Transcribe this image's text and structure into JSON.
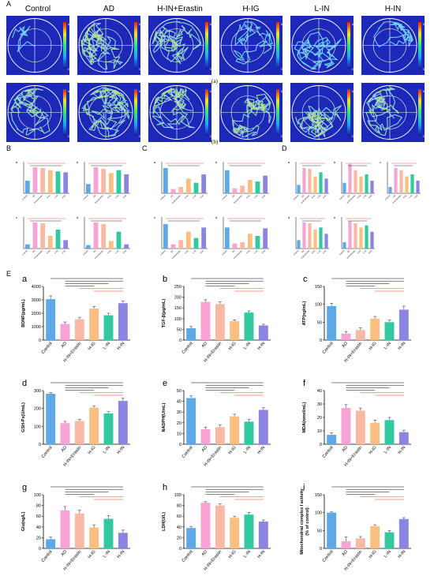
{
  "panel_letters": {
    "A": "A",
    "B": "B",
    "C": "C",
    "D": "D",
    "E": "E"
  },
  "groups": [
    "Control",
    "AD",
    "H-IN+Erastin",
    "H-IG",
    "L-IN",
    "H-IN"
  ],
  "group_colors": [
    "#5fa8e6",
    "#f7a3d6",
    "#f9b9a4",
    "#fbc081",
    "#32c8a0",
    "#8a85e0"
  ],
  "maze": {
    "row_a_label": "(a)",
    "row_b_label": "(b)",
    "colorbar_high": "Max",
    "colorbar_low": "0"
  },
  "b_panels": [
    {
      "id": "a",
      "values": [
        30,
        62,
        60,
        55,
        52,
        50
      ]
    },
    {
      "id": "b",
      "values": [
        22,
        62,
        58,
        48,
        55,
        45
      ]
    },
    {
      "id": "c",
      "values": [
        10,
        62,
        60,
        30,
        45,
        20
      ]
    },
    {
      "id": "d",
      "values": [
        8,
        62,
        58,
        18,
        40,
        10
      ]
    }
  ],
  "c_panels": [
    {
      "id": "a",
      "values": [
        60,
        10,
        15,
        35,
        25,
        45
      ]
    },
    {
      "id": "b",
      "values": [
        55,
        12,
        18,
        32,
        28,
        42
      ]
    },
    {
      "id": "c",
      "values": [
        58,
        10,
        20,
        40,
        25,
        50
      ]
    },
    {
      "id": "d",
      "values": [
        50,
        12,
        15,
        35,
        30,
        48
      ]
    }
  ],
  "d_panels": [
    {
      "id": "a",
      "values": [
        20,
        60,
        58,
        40,
        50,
        35
      ]
    },
    {
      "id": "b",
      "values": [
        25,
        70,
        55,
        40,
        45,
        30
      ]
    },
    {
      "id": "c",
      "values": [
        15,
        60,
        55,
        40,
        45,
        30
      ]
    },
    {
      "id": "d",
      "values": [
        20,
        62,
        60,
        45,
        50,
        35
      ]
    },
    {
      "id": "e",
      "values": [
        15,
        65,
        60,
        50,
        55,
        40
      ]
    }
  ],
  "chart_data": [
    {
      "panel": "a",
      "type": "bar",
      "ylabel": "BDNF(pg/mL)",
      "ylim": [
        0,
        4000
      ],
      "yticks": [
        0,
        1000,
        2000,
        3000,
        4000
      ],
      "categories": [
        "Control",
        "AD",
        "H-IN+Erastin",
        "H-IG",
        "L-IN",
        "H-IN"
      ],
      "values": [
        3050,
        1200,
        1550,
        2350,
        1850,
        2750
      ],
      "errors": [
        250,
        150,
        150,
        150,
        150,
        150
      ]
    },
    {
      "panel": "b",
      "type": "bar",
      "ylabel": "TGF-β(pg/mL)",
      "ylim": [
        0,
        250
      ],
      "yticks": [
        0,
        50,
        100,
        150,
        200,
        250
      ],
      "categories": [
        "Control",
        "AD",
        "H-IN+Erastin",
        "H-IG",
        "L-IN",
        "H-IN"
      ],
      "values": [
        55,
        178,
        168,
        88,
        128,
        68
      ],
      "errors": [
        8,
        10,
        10,
        6,
        8,
        6
      ]
    },
    {
      "panel": "c",
      "type": "bar",
      "ylabel": "ATP(ng/mL)",
      "ylim": [
        0,
        150
      ],
      "yticks": [
        0,
        50,
        100,
        150
      ],
      "categories": [
        "Control",
        "AD",
        "H-IN+Erastin",
        "H-IG",
        "L-IN",
        "H-IN"
      ],
      "values": [
        95,
        18,
        28,
        60,
        50,
        85
      ],
      "errors": [
        8,
        6,
        6,
        6,
        6,
        10
      ]
    },
    {
      "panel": "d",
      "type": "bar",
      "ylabel": "GSH-Px(U/mL)",
      "ylim": [
        0,
        300
      ],
      "yticks": [
        0,
        100,
        200,
        300
      ],
      "categories": [
        "Control",
        "AD",
        "H-IN+Erastin",
        "H-IG",
        "L-IN",
        "H-IN"
      ],
      "values": [
        282,
        118,
        130,
        205,
        172,
        242
      ],
      "errors": [
        8,
        10,
        8,
        8,
        10,
        15
      ]
    },
    {
      "panel": "e",
      "type": "bar",
      "ylabel": "NADPH(U/mL)",
      "ylim": [
        0,
        50
      ],
      "yticks": [
        0,
        10,
        20,
        30,
        40,
        50
      ],
      "categories": [
        "Control",
        "AD",
        "H-IN+Erastin",
        "H-IG",
        "L-IN",
        "H-IN"
      ],
      "values": [
        43,
        14,
        16,
        26,
        21,
        32
      ],
      "errors": [
        2,
        2,
        2,
        2,
        2,
        2
      ]
    },
    {
      "panel": "f",
      "type": "bar",
      "ylabel": "MDA(nmol/mL)",
      "ylim": [
        0,
        40
      ],
      "yticks": [
        0,
        10,
        20,
        30,
        40
      ],
      "categories": [
        "Control",
        "AD",
        "H-IN+Erastin",
        "H-IG",
        "L-IN",
        "H-IN"
      ],
      "values": [
        7,
        27,
        25,
        16,
        18,
        9
      ],
      "errors": [
        1.5,
        2.5,
        2,
        2,
        2,
        1.5
      ]
    },
    {
      "panel": "g",
      "type": "bar",
      "ylabel": "Glu(ng/L)",
      "ylim": [
        0,
        100
      ],
      "yticks": [
        0,
        20,
        40,
        60,
        80,
        100
      ],
      "categories": [
        "Control",
        "AD",
        "H-IN+Erastin",
        "H-IG",
        "L-IN",
        "H-IN"
      ],
      "values": [
        17,
        71,
        65,
        39,
        55,
        29
      ],
      "errors": [
        4,
        7,
        6,
        5,
        6,
        5
      ]
    },
    {
      "panel": "h",
      "type": "bar",
      "ylabel": "LDH(U/L)",
      "ylim": [
        0,
        100
      ],
      "yticks": [
        0,
        20,
        40,
        60,
        80,
        100
      ],
      "categories": [
        "Control",
        "AD",
        "H-IN+Erastin",
        "H-IG",
        "L-IN",
        "H-IN"
      ],
      "values": [
        38,
        85,
        80,
        57,
        63,
        50
      ],
      "errors": [
        3,
        2,
        3,
        3,
        4,
        3
      ]
    },
    {
      "panel": "i",
      "type": "bar",
      "ylabel": "Mitochondrial complex I activity\n(% of control)",
      "ylim": [
        0,
        150
      ],
      "yticks": [
        0,
        50,
        100,
        150
      ],
      "categories": [
        "Control",
        "AD",
        "H-IN+Erastin",
        "H-IG",
        "L-IN",
        "H-IN"
      ],
      "values": [
        100,
        20,
        28,
        62,
        45,
        82
      ],
      "errors": [
        2,
        12,
        5,
        4,
        5,
        4
      ]
    }
  ]
}
